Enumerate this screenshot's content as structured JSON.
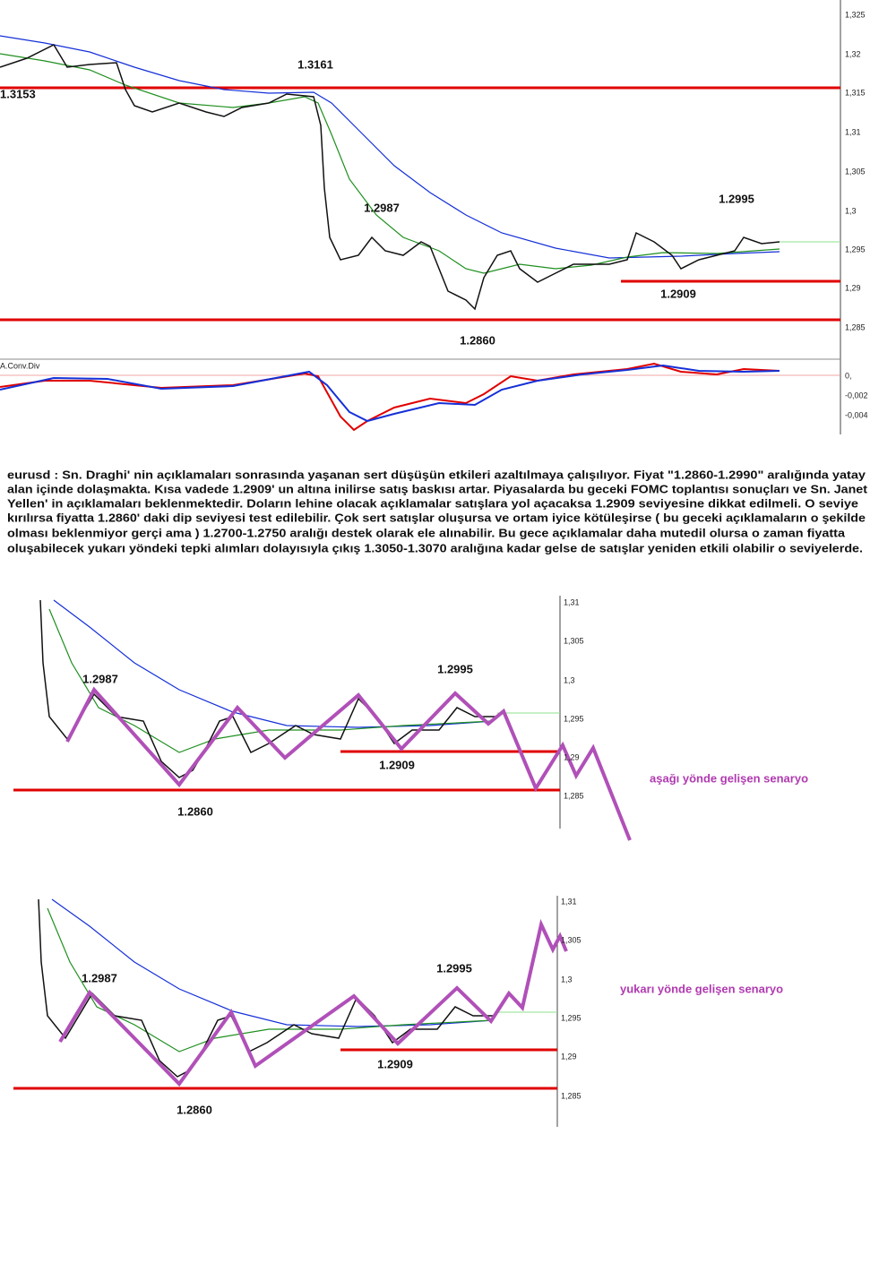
{
  "chart1": {
    "ticks": [
      "1,325",
      "1,32",
      "1,315",
      "1,31",
      "1,305",
      "1,3",
      "1,295",
      "1,29",
      "1,285"
    ],
    "indicator": "A.Conv.Div",
    "indicator_ticks": [
      "0,",
      "-0,002",
      "-0,004"
    ],
    "annotations": [
      "1.3161",
      "1.3153",
      "1.2987",
      "1.2995",
      "1.2909",
      "1.2860"
    ]
  },
  "paragraph": [
    "eurusd : Sn. Draghi' nin açıklamaları sonrasında yaşanan sert düşüşün etkileri azaltılmaya çalışılıyor. Fiyat \"1.2860-1.2990\" aralığında yatay",
    "alan içinde dolaşmakta. Kısa vadede 1.2909' un altına inilirse satış baskısı artar. Piyasalarda bu geceki FOMC toplantısı sonuçları ve Sn. Janet",
    "Yellen' in açıklamaları beklenmektedir. Doların lehine olacak açıklamalar satışlara yol açacaksa 1.2909 seviyesine dikkat edilmeli. O seviye",
    "kırılırsa fiyatta 1.2860' daki dip seviyesi test edilebilir. Çok sert satışlar oluşursa ve ortam iyice kötüleşirse ( bu geceki açıklamaların o şekilde",
    "olması beklenmiyor gerçi ama ) 1.2700-1.2750 aralığı destek olarak ele alınabilir. Bu gece açıklamalar daha mutedil olursa o zaman fiyatta",
    "oluşabilecek yukarı yöndeki tepki alımları dolayısıyla çıkış 1.3050-1.3070 aralığına kadar gelse de satışlar yeniden etkili olabilir o seviyelerde."
  ],
  "chart2": {
    "ticks": [
      "1,31",
      "1,305",
      "1,3",
      "1,295",
      "1,29",
      "1,285"
    ],
    "annotations": [
      "1.2987",
      "1.2995",
      "1.2909",
      "1.2860"
    ],
    "scenario": "aşağı yönde gelişen senaryo"
  },
  "chart3": {
    "ticks": [
      "1,31",
      "1,305",
      "1,3",
      "1,295",
      "1,29",
      "1,285"
    ],
    "annotations": [
      "1.2987",
      "1.2995",
      "1.2909",
      "1.2860"
    ],
    "scenario": "yukarı yönde gelişen senaryo"
  }
}
